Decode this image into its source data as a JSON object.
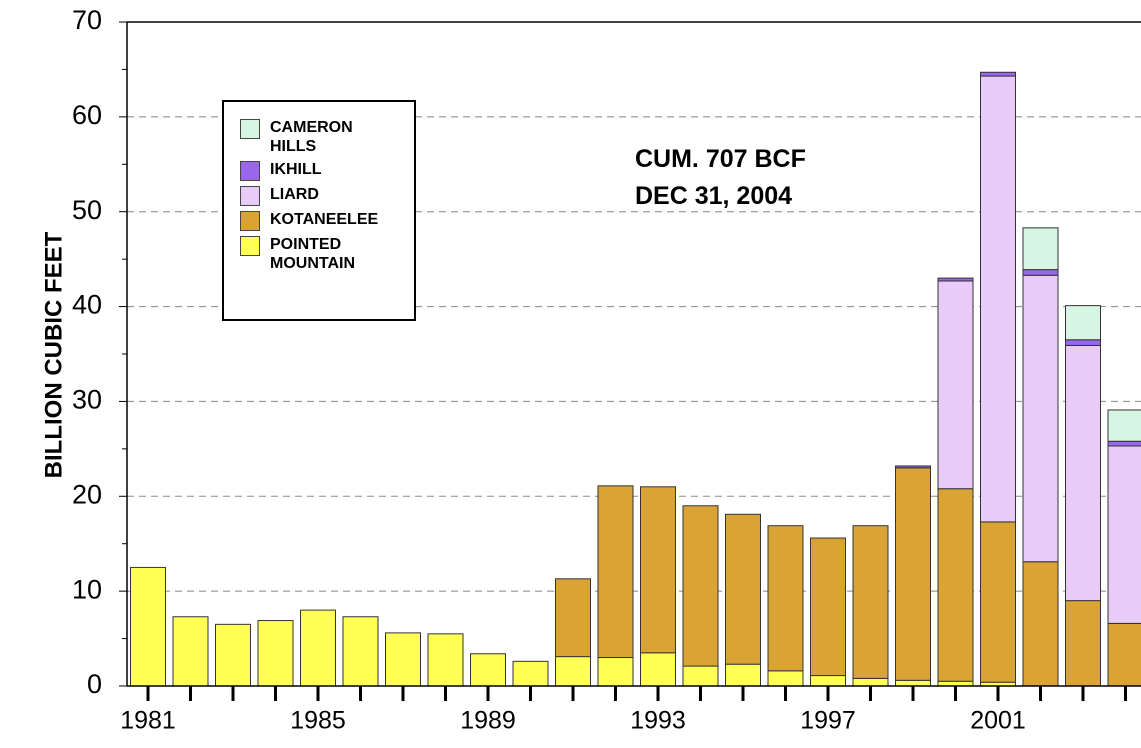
{
  "chart_data": {
    "type": "stacked-bar",
    "y_label": "BILLION CUBIC FEET",
    "annotations": [
      "CUM. 707 BCF",
      "DEC 31, 2004"
    ],
    "categories": [
      "1981",
      null,
      null,
      null,
      "1985",
      null,
      null,
      null,
      "1989",
      null,
      null,
      null,
      "1993",
      null,
      null,
      null,
      "1997",
      null,
      null,
      null,
      "2001",
      null,
      null,
      null
    ],
    "series": [
      {
        "name": "POINTED MOUNTAIN",
        "color": "#ffff55",
        "values": [
          12.5,
          7.3,
          6.5,
          6.9,
          8.0,
          7.3,
          5.6,
          5.5,
          3.4,
          2.6,
          3.1,
          3.0,
          3.5,
          2.1,
          2.3,
          1.6,
          1.1,
          0.8,
          0.6,
          0.5,
          0.4,
          0,
          0,
          0
        ]
      },
      {
        "name": "KOTANEELEE",
        "color": "#d9a336",
        "values": [
          0,
          0,
          0,
          0,
          0,
          0,
          0,
          0,
          0,
          0,
          8.2,
          18.1,
          17.5,
          16.9,
          15.8,
          15.3,
          14.5,
          16.1,
          22.4,
          20.3,
          16.9,
          13.1,
          9.0,
          6.6
        ]
      },
      {
        "name": "LIARD",
        "color": "#e8ccf7",
        "values": [
          0,
          0,
          0,
          0,
          0,
          0,
          0,
          0,
          0,
          0,
          0,
          0,
          0,
          0,
          0,
          0,
          0,
          0,
          0,
          21.9,
          47.0,
          30.2,
          26.9,
          18.7
        ]
      },
      {
        "name": "IKHILL",
        "color": "#9966ee",
        "values": [
          0,
          0,
          0,
          0,
          0,
          0,
          0,
          0,
          0,
          0,
          0,
          0,
          0,
          0,
          0,
          0,
          0,
          0,
          0.2,
          0.3,
          0.4,
          0.6,
          0.6,
          0.5
        ]
      },
      {
        "name": "CAMERON HILLS",
        "color": "#d6f5e3",
        "values": [
          0,
          0,
          0,
          0,
          0,
          0,
          0,
          0,
          0,
          0,
          0,
          0,
          0,
          0,
          0,
          0,
          0,
          0,
          0,
          0,
          0,
          4.4,
          3.6,
          3.3
        ]
      }
    ],
    "ylim": [
      0,
      70
    ],
    "yticks": [
      0,
      10,
      20,
      30,
      40,
      50,
      60,
      70
    ],
    "grid": true,
    "legend": "upper-left"
  }
}
